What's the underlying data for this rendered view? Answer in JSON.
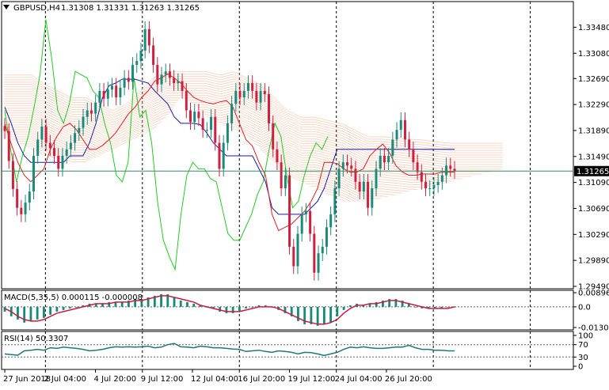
{
  "chart_data": {
    "type": "candlestick",
    "symbol_header": "GBPUSD,H4",
    "ohlc_header": "1.31308 1.31331 1.31263 1.31265",
    "last_price_label": "1.31265",
    "y_ticks": [
      "1.33480",
      "1.33080",
      "1.32690",
      "1.32290",
      "1.31890",
      "1.31490",
      "1.31090",
      "1.30690",
      "1.30290",
      "1.29890",
      "1.29490"
    ],
    "ylim": [
      1.2949,
      1.3368
    ],
    "last_price": 1.31265,
    "x_ticks": [
      "27 Jun 2018",
      "2 Jul 04:00",
      "4 Jul 20:00",
      "9 Jul 12:00",
      "12 Jul 04:00",
      "16 Jul 20:00",
      "19 Jul 12:00",
      "24 Jul 04:00",
      "26 Jul 20:00"
    ],
    "x_tick_bar_index": [
      0,
      13,
      29,
      44,
      60,
      75,
      91,
      106,
      122
    ],
    "period_separator_bar_index": [
      13,
      44,
      75,
      106,
      137,
      168
    ],
    "close": [
      1.3188,
      1.3142,
      1.3099,
      1.307,
      1.306,
      1.3078,
      1.3095,
      1.315,
      1.3175,
      1.3195,
      1.317,
      1.3162,
      1.315,
      1.313,
      1.315,
      1.316,
      1.317,
      1.3185,
      1.3193,
      1.321,
      1.322,
      1.3215,
      1.3232,
      1.325,
      1.3238,
      1.3252,
      1.3258,
      1.324,
      1.3255,
      1.327,
      1.3264,
      1.329,
      1.3296,
      1.3312,
      1.3345,
      1.332,
      1.329,
      1.326,
      1.3275,
      1.328,
      1.327,
      1.3262,
      1.3265,
      1.325,
      1.322,
      1.3202,
      1.3218,
      1.3208,
      1.319,
      1.319,
      1.321,
      1.317,
      1.313,
      1.317,
      1.32,
      1.323,
      1.325,
      1.324,
      1.325,
      1.3262,
      1.325,
      1.3232,
      1.325,
      1.3245,
      1.32,
      1.316,
      1.314,
      1.31,
      1.312,
      1.301,
      1.298,
      1.303,
      1.306,
      1.3065,
      1.303,
      1.297,
      1.3,
      1.301,
      1.304,
      1.306,
      1.31,
      1.313,
      1.314,
      1.3135,
      1.313,
      1.311,
      1.3095,
      1.311,
      1.307,
      1.31,
      1.313,
      1.315,
      1.314,
      1.315,
      1.3175,
      1.319,
      1.3205,
      1.3175,
      1.316,
      1.314,
      1.3125,
      1.311,
      1.31,
      1.31,
      1.3105,
      1.311,
      1.312,
      1.3135,
      1.313,
      1.31265
    ],
    "ma_red": [
      1.32,
      1.3168,
      1.314,
      1.312,
      1.311,
      1.312,
      1.313,
      1.316,
      1.318,
      1.3195,
      1.32,
      1.319,
      1.3175,
      1.316,
      1.316,
      1.3166,
      1.3175,
      1.3185,
      1.32,
      1.3215,
      1.3225,
      1.324,
      1.325,
      1.3265,
      1.327,
      1.3276,
      1.327,
      1.3262,
      1.325,
      1.324,
      1.3235,
      1.3232,
      1.323,
      1.3233,
      1.3235,
      1.3225,
      1.32,
      1.3175,
      1.3165,
      1.314,
      1.312,
      1.306,
      1.3035,
      1.304,
      1.3045,
      1.3055,
      1.3065,
      1.308,
      1.31,
      1.314,
      1.314,
      1.3138,
      1.313,
      1.3125,
      1.3125,
      1.313,
      1.315,
      1.316,
      1.3168,
      1.3155,
      1.3135,
      1.3125,
      1.312,
      1.312,
      1.3122,
      1.3122,
      1.3122,
      1.3125,
      1.3125,
      1.3125
    ],
    "ma_blue": [
      1.3225,
      1.32,
      1.317,
      1.315,
      1.314,
      1.314,
      1.314,
      1.314,
      1.314,
      1.314,
      1.315,
      1.315,
      1.315,
      1.317,
      1.32,
      1.324,
      1.3258,
      1.3262,
      1.3268,
      1.3268,
      1.3268,
      1.3265,
      1.3262,
      1.325,
      1.324,
      1.323,
      1.321,
      1.32,
      1.32,
      1.32,
      1.3198,
      1.3185,
      1.317,
      1.316,
      1.315,
      1.315,
      1.315,
      1.315,
      1.315,
      1.313,
      1.311,
      1.307,
      1.306,
      1.306,
      1.306,
      1.306,
      1.306,
      1.307,
      1.308,
      1.31,
      1.313,
      1.316,
      1.316,
      1.316,
      1.316,
      1.316,
      1.316,
      1.316,
      1.316,
      1.316,
      1.316,
      1.316,
      1.316,
      1.316,
      1.316,
      1.316,
      1.316,
      1.316,
      1.316,
      1.316
    ],
    "ichimoku_cloud_upper": [
      1.3275,
      1.3275,
      1.3275,
      1.326,
      1.325,
      1.324,
      1.324,
      1.323,
      1.322,
      1.323,
      1.325,
      1.327,
      1.328,
      1.328,
      1.328,
      1.328,
      1.3275,
      1.328,
      1.327,
      1.326,
      1.324,
      1.322,
      1.321,
      1.321,
      1.3205,
      1.32,
      1.319,
      1.318,
      1.318,
      1.3178,
      1.3176,
      1.3175,
      1.3172,
      1.317,
      1.317,
      1.317,
      1.317,
      1.317
    ],
    "ichimoku_cloud_lower": [
      1.318,
      1.317,
      1.316,
      1.315,
      1.3145,
      1.314,
      1.314,
      1.315,
      1.316,
      1.317,
      1.318,
      1.319,
      1.321,
      1.324,
      1.323,
      1.321,
      1.32,
      1.319,
      1.318,
      1.316,
      1.314,
      1.312,
      1.311,
      1.31,
      1.309,
      1.308,
      1.308,
      1.308,
      1.3085,
      1.309,
      1.3095,
      1.31,
      1.3105,
      1.311,
      1.3115,
      1.312,
      1.3125,
      1.313
    ],
    "chikou_green": [
      1.322,
      1.316,
      1.311,
      1.315,
      1.318,
      1.3225,
      1.3275,
      1.336,
      1.33,
      1.322,
      1.32,
      1.323,
      1.328,
      1.3275,
      1.327,
      1.325,
      1.324,
      1.32,
      1.317,
      1.312,
      1.311,
      1.314,
      1.327,
      1.321,
      1.322,
      1.317,
      1.308,
      1.302,
      1.2995,
      1.2975,
      1.306,
      1.312,
      1.314,
      1.313,
      1.313,
      1.3115,
      1.311,
      1.307,
      1.303,
      1.302,
      1.302,
      1.304,
      1.306,
      1.309,
      1.311,
      1.316,
      1.32,
      1.318,
      1.312,
      1.307,
      1.308,
      1.312,
      1.315,
      1.317,
      1.316,
      1.318
    ],
    "macd": {
      "label": "MACD(5,35,5) 0.000115 -0.000008",
      "y_ticks": [
        "0.00896",
        "0.0",
        "-0.013081"
      ],
      "ylim": [
        -0.013081,
        0.00896
      ],
      "histogram": [
        -0.003,
        -0.006,
        -0.008,
        -0.01,
        -0.009,
        -0.008,
        -0.007,
        -0.005,
        -0.003,
        -0.002,
        -0.001,
        0.0,
        0.001,
        0.002,
        0.002,
        0.002,
        0.003,
        0.003,
        0.003,
        0.004,
        0.005,
        0.005,
        0.006,
        0.007,
        0.008,
        0.008,
        0.006,
        0.004,
        0.003,
        0.002,
        0.001,
        0.0,
        -0.001,
        -0.003,
        -0.004,
        -0.004,
        -0.003,
        -0.001,
        0.0,
        0.001,
        0.001,
        0.0,
        -0.002,
        -0.004,
        -0.006,
        -0.009,
        -0.011,
        -0.011,
        -0.012,
        -0.011,
        -0.01,
        -0.006,
        -0.002,
        0.001,
        0.002,
        0.001,
        0.002,
        0.003,
        0.004,
        0.005,
        0.005,
        0.004,
        0.002,
        0.0,
        -0.001,
        -0.001,
        -0.001,
        -0.001,
        0.0,
        0.0
      ],
      "signal": [
        -0.001,
        -0.003,
        -0.006,
        -0.008,
        -0.009,
        -0.009,
        -0.008,
        -0.006,
        -0.004,
        -0.003,
        -0.002,
        -0.001,
        0.0,
        0.001,
        0.002,
        0.002,
        0.002,
        0.003,
        0.003,
        0.003,
        0.004,
        0.004,
        0.005,
        0.006,
        0.007,
        0.007,
        0.006,
        0.005,
        0.004,
        0.003,
        0.001,
        0.0,
        -0.001,
        -0.002,
        -0.003,
        -0.003,
        -0.003,
        -0.002,
        -0.001,
        0.0,
        0.0,
        0.0,
        -0.001,
        -0.003,
        -0.005,
        -0.007,
        -0.009,
        -0.01,
        -0.011,
        -0.011,
        -0.01,
        -0.008,
        -0.004,
        -0.001,
        0.001,
        0.001,
        0.002,
        0.002,
        0.003,
        0.004,
        0.004,
        0.003,
        0.002,
        0.001,
        0.0,
        -0.001,
        -0.001,
        -0.001,
        -0.001,
        0.0
      ]
    },
    "rsi": {
      "label": "RSI(14) 50.3307",
      "y_ticks": [
        "100",
        "70",
        "30",
        "0"
      ],
      "ylim": [
        0,
        100
      ],
      "levels": [
        70,
        30
      ],
      "values": [
        40,
        38,
        36,
        50,
        52,
        55,
        52,
        60,
        58,
        62,
        60,
        58,
        55,
        50,
        52,
        55,
        60,
        63,
        62,
        63,
        62,
        63,
        65,
        60,
        62,
        70,
        74,
        63,
        62,
        60,
        65,
        63,
        60,
        60,
        58,
        56,
        55,
        48,
        50,
        52,
        48,
        45,
        50,
        48,
        45,
        40,
        45,
        44,
        40,
        35,
        40,
        45,
        55,
        62,
        60,
        63,
        60,
        58,
        58,
        60,
        62,
        62,
        68,
        60,
        55,
        55,
        52,
        52,
        50,
        50
      ]
    },
    "colors": {
      "bull_candle": "#1b8a7a",
      "bear_candle": "#d02040",
      "ma_red": "#dd1f1f",
      "ma_blue": "#1a1aa8",
      "chikou": "#22cc22",
      "cloud_upper": "#e8946a",
      "cloud_lower": "#c9a2a8",
      "price_line": "#3a8a6a",
      "macd_hist": "#148a7a",
      "macd_signal": "#cc1a40",
      "rsi_line": "#1b7a75"
    }
  }
}
